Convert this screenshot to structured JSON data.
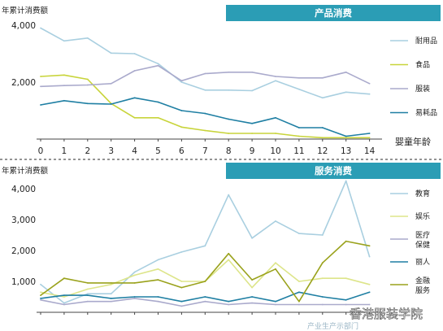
{
  "watermark": "香港服装学院",
  "footer_fragment": "产业生产示部门",
  "colors": {
    "banner": "#2b9db5",
    "separator": "#555555",
    "axis": "#444444"
  },
  "chart_data": [
    {
      "type": "line",
      "banner_title": "产品消费",
      "ylabel": "年累计消费额",
      "xlabel": "婴童年龄",
      "x": [
        0,
        1,
        2,
        3,
        4,
        5,
        6,
        7,
        8,
        9,
        10,
        11,
        12,
        13,
        14
      ],
      "ylim": [
        0,
        4000
      ],
      "yticks": [
        2000,
        4000
      ],
      "ytick_labels": [
        "2,000",
        "4,000"
      ],
      "xtick_labels": [
        "0",
        "1",
        "2",
        "3",
        "4",
        "5",
        "6",
        "7",
        "8",
        "9",
        "10",
        "11",
        "12",
        "13",
        "14"
      ],
      "legend_position": "right",
      "series": [
        {
          "name": "耐用品",
          "color": "#a9cfe0",
          "values": [
            3900,
            3450,
            3550,
            3020,
            3000,
            2650,
            2000,
            1720,
            1720,
            1700,
            2050,
            1750,
            1450,
            1650,
            1580
          ]
        },
        {
          "name": "食品",
          "color": "#c8d43a",
          "values": [
            2200,
            2250,
            2100,
            1250,
            750,
            750,
            420,
            300,
            200,
            200,
            200,
            100,
            50,
            50,
            50
          ]
        },
        {
          "name": "服装",
          "color": "#aaaacc",
          "values": [
            1850,
            1880,
            1900,
            1950,
            2400,
            2580,
            2050,
            2300,
            2350,
            2350,
            2200,
            2150,
            2150,
            2350,
            1950
          ]
        },
        {
          "name": "易耗品",
          "color": "#1f7fa3",
          "values": [
            1200,
            1350,
            1250,
            1230,
            1450,
            1300,
            1000,
            900,
            700,
            550,
            750,
            400,
            400,
            100,
            200
          ]
        }
      ]
    },
    {
      "type": "line",
      "banner_title": "服务消费",
      "ylabel": "年累计消费额",
      "xlabel": "",
      "x": [
        0,
        1,
        2,
        3,
        4,
        5,
        6,
        7,
        8,
        9,
        10,
        11,
        12,
        13,
        14
      ],
      "ylim": [
        0,
        4500
      ],
      "yticks": [
        1000,
        2000,
        3000,
        4000
      ],
      "ytick_labels": [
        "1,000",
        "2,000",
        "3,000",
        "4,000"
      ],
      "xtick_labels": [],
      "legend_position": "right",
      "series": [
        {
          "name": "教育",
          "color": "#a9cfe0",
          "values": [
            900,
            300,
            600,
            600,
            1300,
            1700,
            1950,
            2150,
            3800,
            2400,
            2950,
            2550,
            2500,
            4250,
            1800
          ]
        },
        {
          "name": "娱乐",
          "color": "#dde58a",
          "values": [
            650,
            500,
            750,
            900,
            1200,
            1400,
            1000,
            1000,
            1700,
            800,
            1600,
            1000,
            1100,
            1100,
            900
          ]
        },
        {
          "name": "医疗保健",
          "color": "#aaaacc",
          "values": [
            400,
            250,
            350,
            350,
            450,
            350,
            200,
            350,
            250,
            300,
            250,
            250,
            250,
            250,
            250
          ]
        },
        {
          "name": "丽人",
          "color": "#1f7fa3",
          "values": [
            450,
            550,
            550,
            450,
            500,
            500,
            350,
            500,
            350,
            500,
            350,
            650,
            500,
            400,
            650
          ]
        },
        {
          "name": "金融服务",
          "color": "#9aa21c",
          "values": [
            550,
            1100,
            950,
            950,
            950,
            1050,
            800,
            1000,
            1900,
            1050,
            1400,
            350,
            1600,
            2300,
            2150
          ]
        }
      ]
    }
  ]
}
